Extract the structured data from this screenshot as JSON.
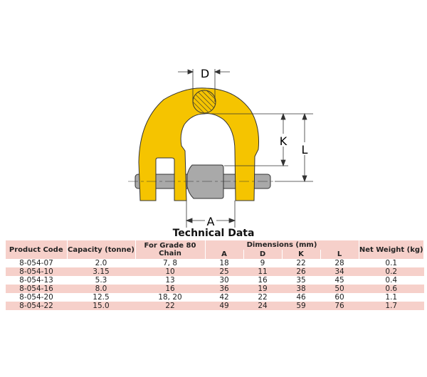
{
  "diagram": {
    "labels": {
      "D": "D",
      "K": "K",
      "L": "L",
      "A": "A"
    },
    "colors": {
      "body": "#f5c400",
      "pin": "#a9a9a9",
      "outline": "#333333"
    }
  },
  "title": "Technical Data",
  "table": {
    "headers": {
      "product_code": "Product Code",
      "capacity": "Capacity (tonne)",
      "grade": "For Grade 80 Chain",
      "dimensions": "Dimensions (mm)",
      "dims": [
        "A",
        "D",
        "K",
        "L"
      ],
      "weight": "Net Weight (kg)"
    },
    "rows": [
      [
        "8-054-07",
        "2.0",
        "7, 8",
        "18",
        "9",
        "22",
        "28",
        "0.1"
      ],
      [
        "8-054-10",
        "3.15",
        "10",
        "25",
        "11",
        "26",
        "34",
        "0.2"
      ],
      [
        "8-054-13",
        "5.3",
        "13",
        "30",
        "16",
        "35",
        "45",
        "0.4"
      ],
      [
        "8-054-16",
        "8.0",
        "16",
        "36",
        "19",
        "38",
        "50",
        "0.6"
      ],
      [
        "8-054-20",
        "12.5",
        "18, 20",
        "42",
        "22",
        "46",
        "60",
        "1.1"
      ],
      [
        "8-054-22",
        "15.0",
        "22",
        "49",
        "24",
        "59",
        "76",
        "1.7"
      ]
    ],
    "stripe_color": "#f6d0ca"
  }
}
